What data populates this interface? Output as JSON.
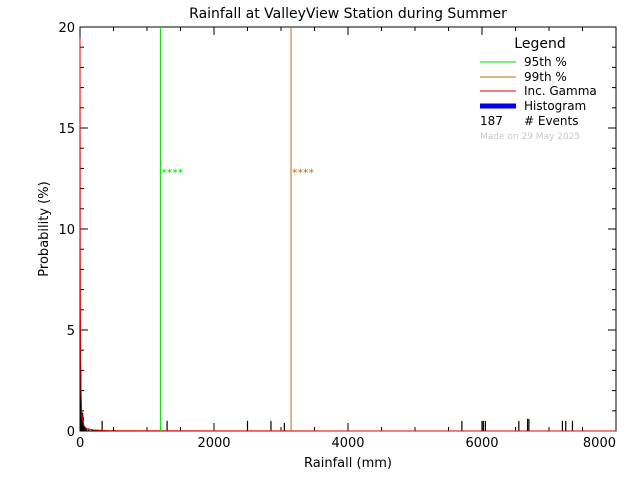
{
  "chart_data": {
    "type": "bar",
    "title": "Rainfall at ValleyView Station during Summer",
    "xlabel": "Rainfall (mm)",
    "ylabel": "Probability (%)",
    "xlim": [
      0,
      8000
    ],
    "ylim": [
      0,
      20
    ],
    "xticks": [
      0,
      2000,
      4000,
      6000,
      8000
    ],
    "yticks": [
      0,
      5,
      10,
      15,
      20
    ],
    "grid": false,
    "legend_placement": "top-right",
    "legend": {
      "title": "Legend",
      "entries": [
        {
          "label": "95th %",
          "color": "#00dd00"
        },
        {
          "label": "99th %",
          "color": "#b86b1a"
        },
        {
          "label": "Inc. Gamma",
          "color": "#dd0000"
        },
        {
          "label": "Histogram",
          "color": "#0000ee"
        }
      ],
      "events_count": "187",
      "events_label": "# Events",
      "made_on": "Made on 29 May 2025"
    },
    "percentiles": [
      {
        "name": "95th %",
        "value": 1200,
        "marker": "****",
        "color": "#00dd00"
      },
      {
        "name": "99th %",
        "value": 3150,
        "marker": "****",
        "color": "#b86b1a"
      }
    ],
    "histogram": {
      "x": [
        5,
        12,
        18,
        25,
        32,
        40,
        48,
        55,
        65,
        80,
        100,
        130,
        180,
        250,
        330,
        420,
        480,
        520,
        1300,
        2500,
        2850,
        3050,
        5700,
        6000,
        6020,
        6050,
        6550,
        6680,
        6700,
        7200,
        7250,
        7350
      ],
      "values": [
        4.2,
        3.0,
        1.0,
        0.6,
        0.4,
        0.9,
        0.7,
        0.3,
        0.2,
        0.15,
        0.1,
        0.08,
        0.06,
        0.05,
        0.5,
        0.05,
        0.05,
        0.05,
        0.5,
        0.5,
        0.5,
        0.4,
        0.5,
        0.5,
        0.5,
        0.5,
        0.5,
        0.6,
        0.6,
        0.5,
        0.5,
        0.5
      ]
    },
    "gamma": {
      "x": [
        0,
        3,
        6,
        10,
        15,
        25,
        40,
        60,
        100,
        200,
        400,
        800,
        2000,
        4000,
        8000
      ],
      "values": [
        19.5,
        9.0,
        6.0,
        3.5,
        2.0,
        1.0,
        0.5,
        0.25,
        0.12,
        0.05,
        0.02,
        0.01,
        0.005,
        0.002,
        0.001
      ]
    }
  }
}
